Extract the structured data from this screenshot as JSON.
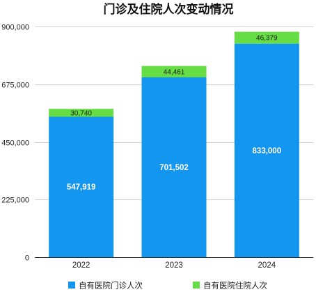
{
  "chart_data": {
    "type": "bar",
    "stacked": true,
    "title": "门诊及住院人次变动情况",
    "categories": [
      "2022",
      "2023",
      "2024"
    ],
    "series": [
      {
        "name": "自有医院门诊人次",
        "color": "#1396f0",
        "values": [
          547919,
          701502,
          833000
        ]
      },
      {
        "name": "自有医院住院人次",
        "color": "#66dd44",
        "values": [
          30740,
          44461,
          46379
        ]
      }
    ],
    "ylim": [
      0,
      900000
    ],
    "yticks": [
      0,
      225000,
      450000,
      675000,
      900000
    ],
    "ytick_labels": [
      "0",
      "225,000",
      "450,000",
      "675,000",
      "900,000"
    ],
    "value_labels": [
      [
        "547,919",
        "701,502",
        "833,000"
      ],
      [
        "30,740",
        "44,461",
        "46,379"
      ]
    ],
    "grid": true,
    "legend_position": "bottom"
  }
}
